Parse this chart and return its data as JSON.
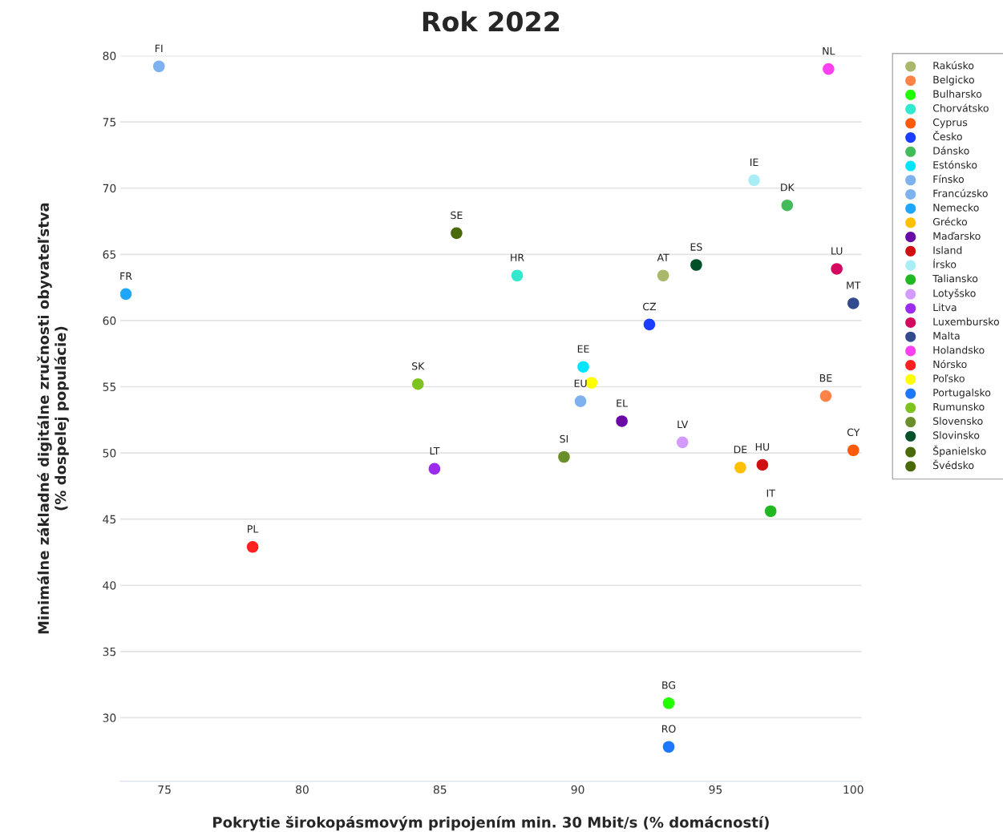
{
  "chart_data": {
    "type": "scatter",
    "title": "Rok 2022",
    "xlabel": "Pokrytie širokopásmovým pripojením min. 30 Mbit/s (% domácností)",
    "ylabel": "Minimálne základné digitálne zručnosti obyvateľstva\n(% dospelej populácie)",
    "xlim": [
      73.4,
      100.3
    ],
    "ylim": [
      25.2,
      80
    ],
    "xticks": [
      75,
      80,
      85,
      90,
      95,
      100
    ],
    "yticks": [
      30,
      35,
      40,
      45,
      50,
      55,
      60,
      65,
      70,
      75,
      80
    ],
    "grid": "y",
    "legend": "top right",
    "marker": "circle",
    "series": [
      {
        "name": "Rakúsko",
        "color": "#a9b86a",
        "x": [
          93.1
        ],
        "values": [
          63.4
        ]
      },
      {
        "name": "Belgicko",
        "color": "#ff8246",
        "x": [
          99.0
        ],
        "values": [
          54.3
        ]
      },
      {
        "name": "Bulharsko",
        "color": "#22ff00",
        "x": [
          93.3
        ],
        "values": [
          31.1
        ]
      },
      {
        "name": "Chorvátsko",
        "color": "#33e8cc",
        "x": [
          87.8
        ],
        "values": [
          63.4
        ]
      },
      {
        "name": "Cyprus",
        "color": "#ff5a0a",
        "x": [
          100.0
        ],
        "values": [
          50.2
        ]
      },
      {
        "name": "Česko",
        "color": "#1a3dff",
        "x": [
          92.6
        ],
        "values": [
          59.7
        ]
      },
      {
        "name": "Dánsko",
        "color": "#44bb5a",
        "x": [
          97.6
        ],
        "values": [
          68.7
        ]
      },
      {
        "name": "Estónsko",
        "color": "#00e5ff",
        "x": [
          90.2
        ],
        "values": [
          56.5
        ]
      },
      {
        "name": "Fínsko",
        "color": "#7eb2ee",
        "x": [
          74.8
        ],
        "values": [
          79.2
        ]
      },
      {
        "name": "Francúzsko",
        "color": "#7eb2ee",
        "x": [
          90.1
        ],
        "values": [
          53.9
        ]
      },
      {
        "name": "Nemecko",
        "color": "#1ea7fd",
        "x": [
          73.6
        ],
        "values": [
          62.0
        ]
      },
      {
        "name": "Grécko",
        "color": "#ffc000",
        "x": [
          95.9
        ],
        "values": [
          48.9
        ]
      },
      {
        "name": "Maďarsko",
        "color": "#6a0aa6",
        "x": [
          91.6
        ],
        "values": [
          52.4
        ]
      },
      {
        "name": "Island",
        "color": "#d01010",
        "x": [
          96.7
        ],
        "values": [
          49.1
        ]
      },
      {
        "name": "Írsko",
        "color": "#aaeef5",
        "x": [
          96.4
        ],
        "values": [
          70.6
        ]
      },
      {
        "name": "Taliansko",
        "color": "#22b822",
        "x": [
          97.0
        ],
        "values": [
          45.6
        ]
      },
      {
        "name": "Lotyšsko",
        "color": "#d49bff",
        "x": [
          93.8
        ],
        "values": [
          50.8
        ]
      },
      {
        "name": "Litva",
        "color": "#9b2bef",
        "x": [
          84.8
        ],
        "values": [
          48.8
        ]
      },
      {
        "name": "Luxembursko",
        "color": "#d4085e",
        "x": [
          99.4
        ],
        "values": [
          63.9
        ]
      },
      {
        "name": "Malta",
        "color": "#334a8f",
        "x": [
          100.0
        ],
        "values": [
          61.3
        ]
      },
      {
        "name": "Holandsko",
        "color": "#ff40f0",
        "x": [
          99.1
        ],
        "values": [
          79.0
        ]
      },
      {
        "name": "Nórsko",
        "color": "#ff2020",
        "x": [
          78.2
        ],
        "values": [
          42.9
        ]
      },
      {
        "name": "Poľsko",
        "color": "#ffff00",
        "x": [
          90.5
        ],
        "values": [
          55.3
        ]
      },
      {
        "name": "Portugalsko",
        "color": "#1f77ff",
        "x": [
          93.3
        ],
        "values": [
          27.8
        ]
      },
      {
        "name": "Rumunsko",
        "color": "#7dc21e",
        "x": [
          84.2
        ],
        "values": [
          55.2
        ]
      },
      {
        "name": "Slovensko",
        "color": "#6a8f2a",
        "x": [
          89.5
        ],
        "values": [
          49.7
        ]
      },
      {
        "name": "Slovinsko",
        "color": "#00502a",
        "x": [
          94.3
        ],
        "values": [
          64.2
        ]
      },
      {
        "name": "Španielsko",
        "color": "#4a6a0a",
        "x": [
          85.6
        ],
        "values": [
          66.6
        ]
      },
      {
        "name": "Švédsko",
        "color": "#4a6a0a"
      }
    ],
    "annotations": [
      {
        "text": "FI",
        "x": 74.8,
        "y": 79.2
      },
      {
        "text": "NL",
        "x": 99.1,
        "y": 79.0
      },
      {
        "text": "IE",
        "x": 96.4,
        "y": 70.6
      },
      {
        "text": "DK",
        "x": 97.6,
        "y": 68.7
      },
      {
        "text": "SE",
        "x": 85.6,
        "y": 66.6
      },
      {
        "text": "HR",
        "x": 87.8,
        "y": 63.4
      },
      {
        "text": "AT",
        "x": 93.1,
        "y": 63.4
      },
      {
        "text": "ES",
        "x": 94.3,
        "y": 64.2
      },
      {
        "text": "LU",
        "x": 99.4,
        "y": 63.9
      },
      {
        "text": "FR",
        "x": 73.6,
        "y": 62.0
      },
      {
        "text": "MT",
        "x": 100.0,
        "y": 61.3
      },
      {
        "text": "CZ",
        "x": 92.6,
        "y": 59.7
      },
      {
        "text": "EE",
        "x": 90.2,
        "y": 56.5
      },
      {
        "text": "SK",
        "x": 84.2,
        "y": 55.2
      },
      {
        "text": "EU",
        "x": 90.1,
        "y": 53.9
      },
      {
        "text": "BE",
        "x": 99.0,
        "y": 54.3
      },
      {
        "text": "EL",
        "x": 91.6,
        "y": 52.4
      },
      {
        "text": "LV",
        "x": 93.8,
        "y": 50.8
      },
      {
        "text": "SI",
        "x": 89.5,
        "y": 49.7
      },
      {
        "text": "CY",
        "x": 100.0,
        "y": 50.2
      },
      {
        "text": "LT",
        "x": 84.8,
        "y": 48.8
      },
      {
        "text": "DE",
        "x": 95.9,
        "y": 48.9
      },
      {
        "text": "HU",
        "x": 96.7,
        "y": 49.1
      },
      {
        "text": "IT",
        "x": 97.0,
        "y": 45.6
      },
      {
        "text": "PL",
        "x": 78.2,
        "y": 42.9
      },
      {
        "text": "BG",
        "x": 93.3,
        "y": 31.1
      },
      {
        "text": "RO",
        "x": 93.3,
        "y": 27.8
      }
    ]
  }
}
